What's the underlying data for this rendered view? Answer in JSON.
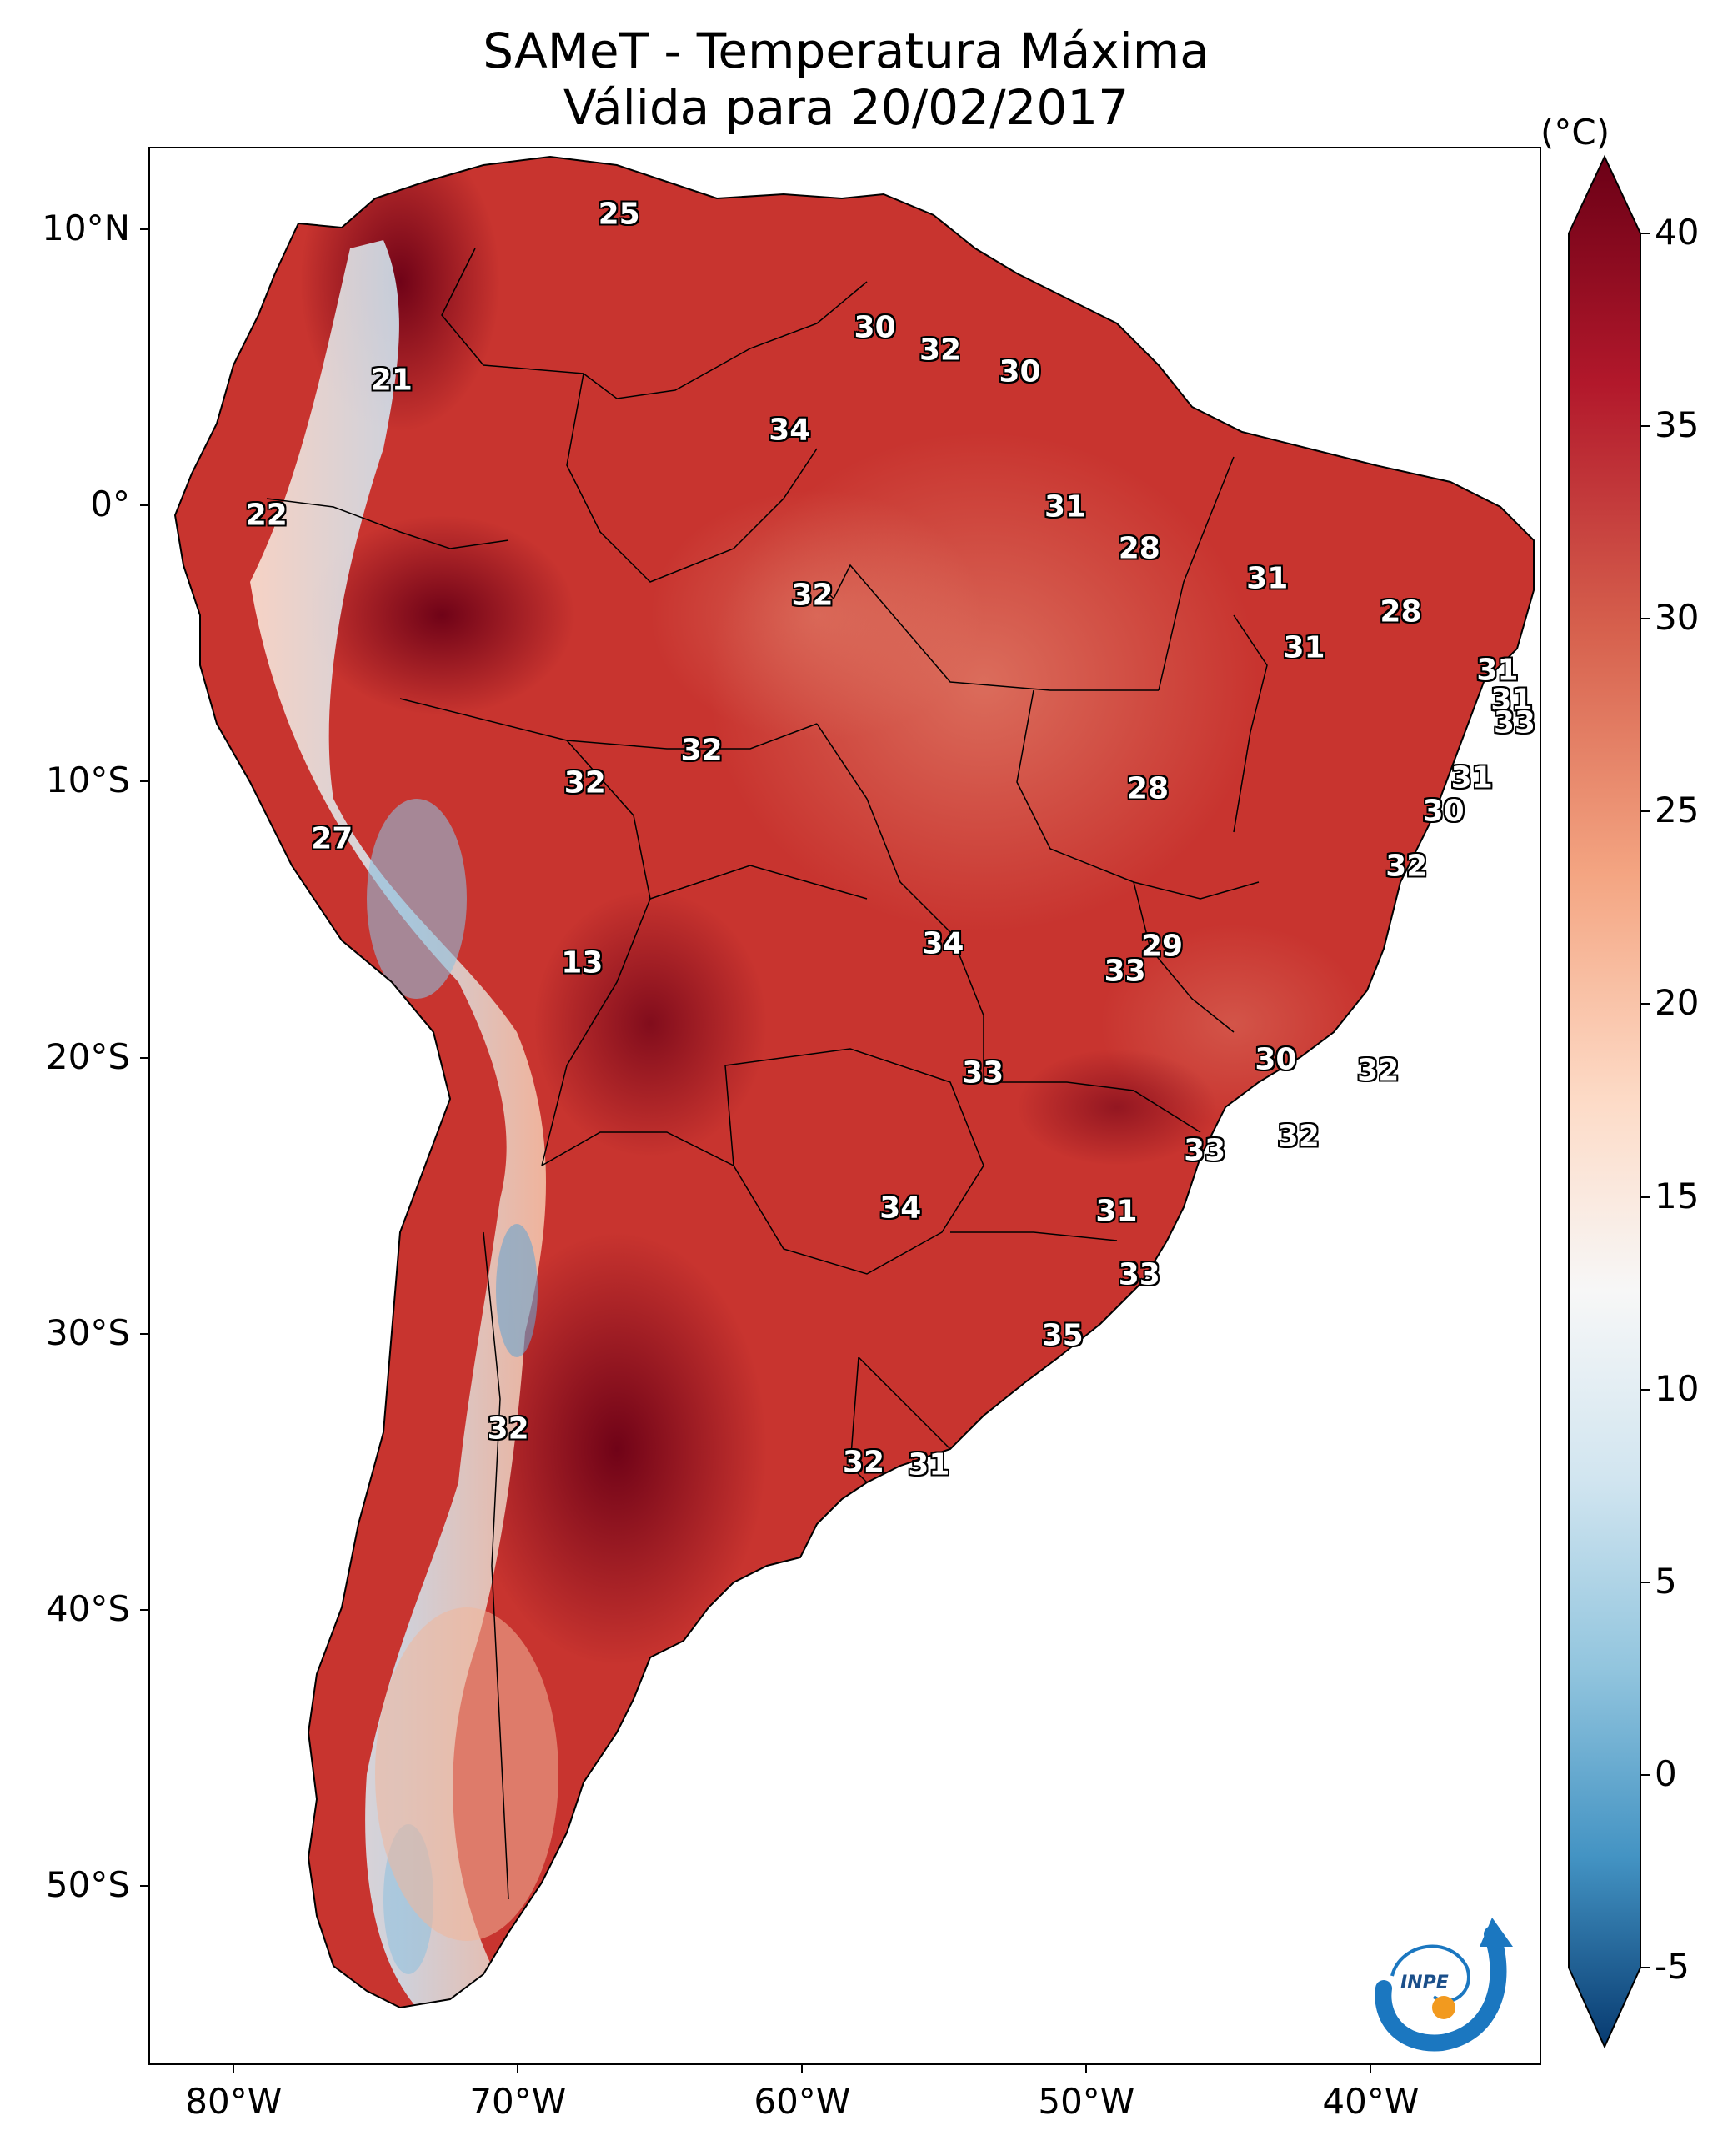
{
  "title": {
    "line1": "SAMeT - Temperatura Máxima",
    "line2": "Válida para 20/02/2017"
  },
  "colorbar": {
    "unit": "(°C)",
    "ticks": [
      "40",
      "35",
      "30",
      "25",
      "20",
      "15",
      "10",
      "5",
      "0",
      "-5"
    ],
    "range": [
      -5,
      40
    ],
    "colors": {
      "low": "#073a70",
      "mid": "#f7f7f7",
      "high": "#6b0016"
    }
  },
  "axes": {
    "lat_labels": [
      "10°N",
      "0°",
      "10°S",
      "20°S",
      "30°S",
      "40°S",
      "50°S"
    ],
    "lon_labels": [
      "80°W",
      "70°W",
      "60°W",
      "50°W",
      "40°W"
    ],
    "extent": {
      "lon": [
        -83,
        -34
      ],
      "lat": [
        -56.5,
        13
      ]
    }
  },
  "map": {
    "ocean_color": "#ffffff",
    "border_color": "#000000",
    "values": [
      {
        "label": "25",
        "lon": -66.5,
        "lat": 10.6
      },
      {
        "label": "30",
        "lon": -57.5,
        "lat": 6.5
      },
      {
        "label": "32",
        "lon": -55.2,
        "lat": 5.7
      },
      {
        "label": "30",
        "lon": -52.4,
        "lat": 4.9
      },
      {
        "label": "21",
        "lon": -74.5,
        "lat": 4.6
      },
      {
        "label": "34",
        "lon": -60.5,
        "lat": 2.8
      },
      {
        "label": "22",
        "lon": -78.9,
        "lat": -0.3
      },
      {
        "label": "31",
        "lon": -50.8,
        "lat": 0.0
      },
      {
        "label": "28",
        "lon": -48.2,
        "lat": -1.5
      },
      {
        "label": "32",
        "lon": -59.7,
        "lat": -3.2
      },
      {
        "label": "31",
        "lon": -43.7,
        "lat": -2.6
      },
      {
        "label": "28",
        "lon": -39.0,
        "lat": -3.8
      },
      {
        "label": "31",
        "lon": -42.4,
        "lat": -5.1
      },
      {
        "label": "31",
        "lon": -35.6,
        "lat": -5.9
      },
      {
        "label": "31",
        "lon": -35.1,
        "lat": -7.0
      },
      {
        "label": "33",
        "lon": -35.0,
        "lat": -7.8
      },
      {
        "label": "32",
        "lon": -63.6,
        "lat": -8.8
      },
      {
        "label": "32",
        "lon": -67.7,
        "lat": -10.0
      },
      {
        "label": "31",
        "lon": -36.5,
        "lat": -9.8
      },
      {
        "label": "28",
        "lon": -47.9,
        "lat": -10.2
      },
      {
        "label": "30",
        "lon": -37.5,
        "lat": -11.0
      },
      {
        "label": "27",
        "lon": -76.6,
        "lat": -12.0
      },
      {
        "label": "32",
        "lon": -38.8,
        "lat": -13.0
      },
      {
        "label": "34",
        "lon": -55.1,
        "lat": -15.8
      },
      {
        "label": "29",
        "lon": -47.4,
        "lat": -15.9
      },
      {
        "label": "33",
        "lon": -48.7,
        "lat": -16.8
      },
      {
        "label": "13",
        "lon": -67.8,
        "lat": -16.5
      },
      {
        "label": "30",
        "lon": -43.4,
        "lat": -20.0
      },
      {
        "label": "32",
        "lon": -39.8,
        "lat": -20.4
      },
      {
        "label": "33",
        "lon": -53.7,
        "lat": -20.5
      },
      {
        "label": "32",
        "lon": -42.6,
        "lat": -22.8
      },
      {
        "label": "33",
        "lon": -45.9,
        "lat": -23.3
      },
      {
        "label": "34",
        "lon": -56.6,
        "lat": -25.4
      },
      {
        "label": "31",
        "lon": -49.0,
        "lat": -25.5
      },
      {
        "label": "33",
        "lon": -48.2,
        "lat": -27.8
      },
      {
        "label": "35",
        "lon": -50.9,
        "lat": -30.0
      },
      {
        "label": "32",
        "lon": -70.4,
        "lat": -33.4
      },
      {
        "label": "32",
        "lon": -57.9,
        "lat": -34.6
      },
      {
        "label": "31",
        "lon": -55.6,
        "lat": -34.7
      }
    ]
  },
  "logo": {
    "text": "INPE"
  }
}
